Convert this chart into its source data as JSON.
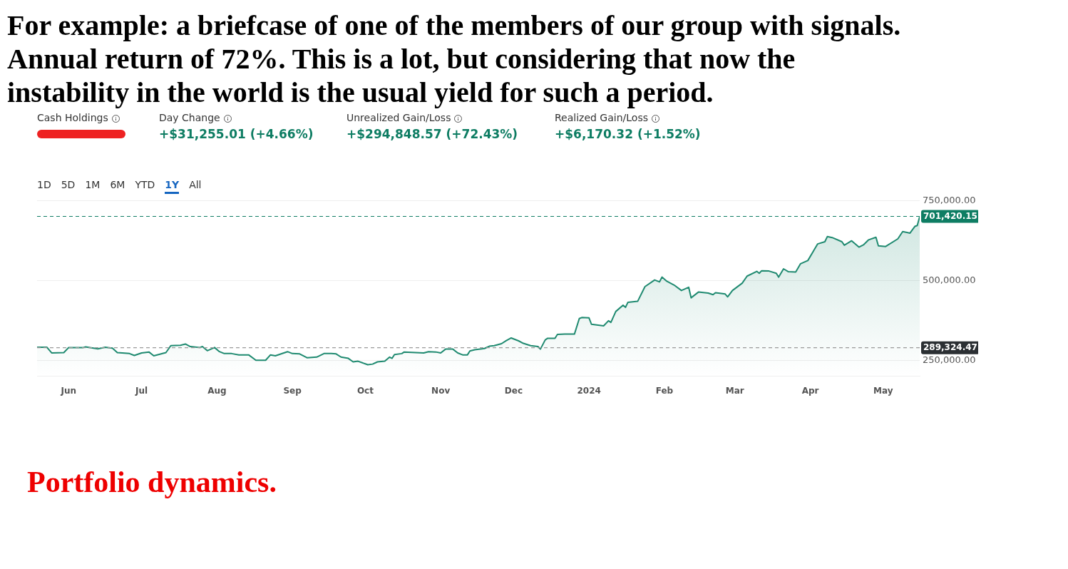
{
  "chart_data": {
    "type": "area",
    "title": "For example: a briefcase of one of the members of our group with signals.\nAnnual return of 72%. This is a lot, but considering that now the\ninstability in the world is the usual yield for such a period.",
    "annotations": [
      "Cash Holdings",
      "Day Change",
      "+$31,255.01 (+4.66%)",
      "Unrealized Gain/Loss",
      "+$294,848.57 (+72.43%)",
      "Realized Gain/Loss",
      "+$6,170.32 (+1.52%)",
      "1D",
      "5D",
      "1M",
      "6M",
      "YTD",
      "1Y",
      "All",
      "Portfolio dynamics."
    ],
    "x": [
      "2023-05-19",
      "2023-05-23",
      "2023-05-25",
      "2023-05-30",
      "2023-06-01",
      "2023-06-07",
      "2023-06-08",
      "2023-06-13",
      "2023-06-16",
      "2023-06-19",
      "2023-06-21",
      "2023-06-26",
      "2023-06-28",
      "2023-07-01",
      "2023-07-04",
      "2023-07-06",
      "2023-07-11",
      "2023-07-13",
      "2023-07-17",
      "2023-07-19",
      "2023-07-21",
      "2023-07-25",
      "2023-07-26",
      "2023-07-28",
      "2023-07-31",
      "2023-08-02",
      "2023-08-04",
      "2023-08-07",
      "2023-08-10",
      "2023-08-14",
      "2023-08-17",
      "2023-08-21",
      "2023-08-23",
      "2023-08-25",
      "2023-08-30",
      "2023-09-01",
      "2023-09-04",
      "2023-09-07",
      "2023-09-11",
      "2023-09-14",
      "2023-09-17",
      "2023-09-19",
      "2023-09-21",
      "2023-09-24",
      "2023-09-26",
      "2023-09-28",
      "2023-10-02",
      "2023-10-04",
      "2023-10-06",
      "2023-10-09",
      "2023-10-11",
      "2023-10-12",
      "2023-10-13",
      "2023-10-16",
      "2023-10-17",
      "2023-10-25",
      "2023-10-27",
      "2023-10-30",
      "2023-11-01",
      "2023-11-03",
      "2023-11-06",
      "2023-11-08",
      "2023-11-10",
      "2023-11-12",
      "2023-11-13",
      "2023-11-15",
      "2023-11-19",
      "2023-11-21",
      "2023-11-23",
      "2023-11-26",
      "2023-11-28",
      "2023-11-30",
      "2023-12-03",
      "2023-12-05",
      "2023-12-08",
      "2023-12-11",
      "2023-12-12",
      "2023-12-14",
      "2023-12-15",
      "2023-12-18",
      "2023-12-19",
      "2023-12-22",
      "2023-12-26",
      "2023-12-28",
      "2023-12-29",
      "2024-01-01",
      "2024-01-02",
      "2024-01-07",
      "2024-01-09",
      "2024-01-10",
      "2024-01-12",
      "2024-01-15",
      "2024-01-16",
      "2024-01-17",
      "2024-01-21",
      "2024-01-24",
      "2024-01-28",
      "2024-01-30",
      "2024-01-31",
      "2024-02-02",
      "2024-02-05",
      "2024-02-08",
      "2024-02-11",
      "2024-02-12",
      "2024-02-15",
      "2024-02-19",
      "2024-02-21",
      "2024-02-22",
      "2024-02-26",
      "2024-02-27",
      "2024-02-29",
      "2024-03-04",
      "2024-03-06",
      "2024-03-10",
      "2024-03-11",
      "2024-03-12",
      "2024-03-15",
      "2024-03-18",
      "2024-03-19",
      "2024-03-21",
      "2024-03-23",
      "2024-03-26",
      "2024-03-28",
      "2024-03-31",
      "2024-04-03",
      "2024-04-04",
      "2024-04-07",
      "2024-04-08",
      "2024-04-10",
      "2024-04-14",
      "2024-04-15",
      "2024-04-18",
      "2024-04-21",
      "2024-04-23",
      "2024-04-25",
      "2024-04-28",
      "2024-04-29",
      "2024-05-02",
      "2024-05-07",
      "2024-05-09",
      "2024-05-12",
      "2024-05-14",
      "2024-05-15",
      "2024-05-16"
    ],
    "series": [
      {
        "color": "#1f8a70",
        "values": [
          291000,
          291000,
          273000,
          274000,
          290000,
          290000,
          292000,
          286000,
          291000,
          288000,
          274000,
          271000,
          265000,
          273000,
          276000,
          264000,
          274000,
          296000,
          297000,
          301000,
          293000,
          290000,
          293000,
          280000,
          290000,
          277000,
          271000,
          271000,
          267000,
          267000,
          250000,
          250000,
          267000,
          264000,
          277000,
          271000,
          270000,
          258000,
          260000,
          271000,
          271000,
          270000,
          260000,
          256000,
          245000,
          247000,
          236000,
          238000,
          245000,
          247000,
          260000,
          256000,
          268000,
          271000,
          276000,
          273000,
          277000,
          276000,
          273000,
          285000,
          285000,
          273000,
          267000,
          267000,
          279000,
          283000,
          287000,
          294000,
          296000,
          302000,
          312000,
          320000,
          311000,
          303000,
          296000,
          293000,
          285000,
          314000,
          319000,
          319000,
          331000,
          332000,
          332000,
          381000,
          384000,
          383000,
          363000,
          358000,
          374000,
          369000,
          403000,
          423000,
          416000,
          432000,
          435000,
          481000,
          502000,
          496000,
          511000,
          498000,
          486000,
          469000,
          479000,
          446000,
          464000,
          461000,
          456000,
          462000,
          458000,
          449000,
          469000,
          492000,
          514000,
          529000,
          523000,
          531000,
          530000,
          523000,
          511000,
          537000,
          528000,
          527000,
          553000,
          563000,
          602000,
          615000,
          622000,
          638000,
          635000,
          622000,
          611000,
          625000,
          605000,
          613000,
          628000,
          636000,
          609000,
          607000,
          631000,
          654000,
          649000,
          670000,
          673000,
          701000
        ]
      }
    ],
    "xlim": [
      "2023-05-19",
      "2024-05-16"
    ],
    "xticks": [
      {
        "value": "2023-06-01",
        "label": "Jun"
      },
      {
        "value": "2023-07-01",
        "label": "Jul"
      },
      {
        "value": "2023-08-01",
        "label": "Aug"
      },
      {
        "value": "2023-09-01",
        "label": "Sep"
      },
      {
        "value": "2023-10-01",
        "label": "Oct"
      },
      {
        "value": "2023-11-01",
        "label": "Nov"
      },
      {
        "value": "2023-12-01",
        "label": "Dec"
      },
      {
        "value": "2024-01-01",
        "label": "2024"
      },
      {
        "value": "2024-02-01",
        "label": "Feb"
      },
      {
        "value": "2024-03-01",
        "label": "Mar"
      },
      {
        "value": "2024-04-01",
        "label": "Apr"
      },
      {
        "value": "2024-05-01",
        "label": "May"
      }
    ],
    "ylim": [
      200000,
      750000
    ],
    "yticks": [
      {
        "value": 250000,
        "label": "250,000.00"
      },
      {
        "value": 500000,
        "label": "500,000.00"
      },
      {
        "value": 750000,
        "label": "750,000.00"
      }
    ],
    "ref_lines": [
      {
        "axis": "y",
        "value": 701420.15,
        "label": "701,420.15",
        "color": "#0e7d63",
        "line_style": "dashed"
      },
      {
        "axis": "y",
        "value": 289324.47,
        "label": "289,324.47",
        "color": "#9a9a9a",
        "line_style": "dashed"
      }
    ],
    "grid": "y",
    "marker": "none"
  }
}
